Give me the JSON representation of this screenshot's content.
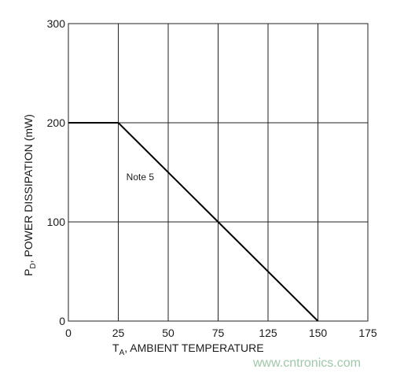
{
  "chart_data": {
    "type": "line",
    "title": "",
    "x_categories": [
      "0",
      "25",
      "50",
      "75",
      "125",
      "150",
      "175"
    ],
    "yticks": [
      0,
      100,
      200,
      300
    ],
    "ylim": [
      0,
      300
    ],
    "ylabel": {
      "main": "P",
      "sub": "D",
      "rest": ", POWER DISSIPATION (mW)"
    },
    "xlabel": {
      "main": "T",
      "sub": "A",
      "rest": ", AMBIENT TEMPERATURE"
    },
    "series": [
      {
        "x_index": [
          0,
          1,
          3,
          5
        ],
        "values": [
          200,
          200,
          100,
          0
        ],
        "color": "#000000"
      }
    ],
    "annotation": {
      "text": "Note 5",
      "x_index": 1.16,
      "y": 142
    },
    "grid": true
  },
  "watermark": "www.cntronics.com",
  "colors": {
    "grid": "#222222",
    "line": "#000000",
    "watermark": "#9fc7a8"
  }
}
